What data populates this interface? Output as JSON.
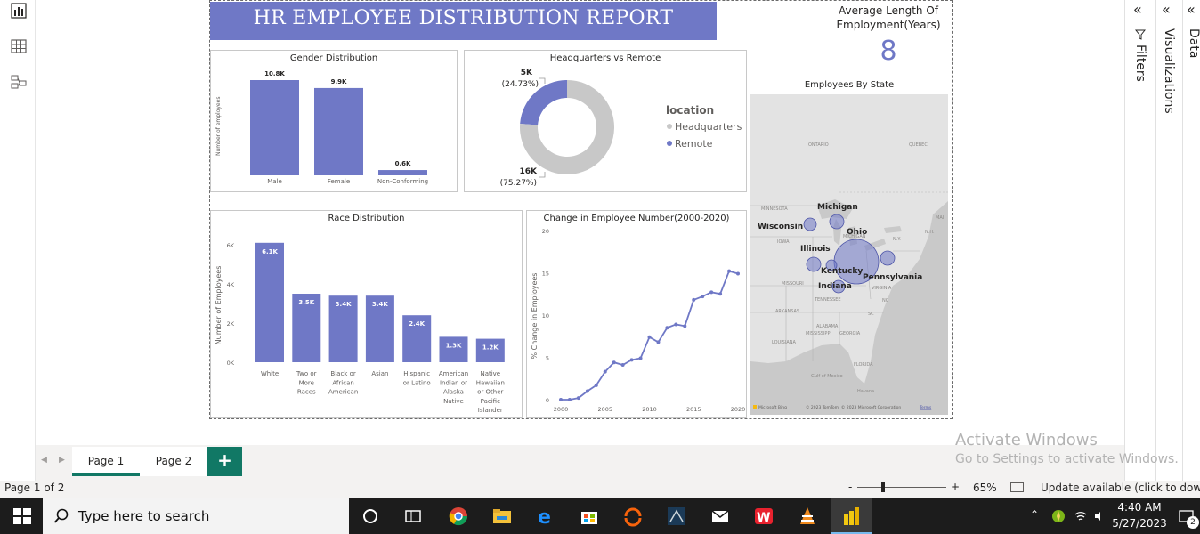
{
  "report": {
    "title": "HR EMPLOYEE DISTRIBUTION REPORT",
    "kpi_title": "Average Length Of Employment(Years)",
    "kpi_value": "8"
  },
  "gender": {
    "title": "Gender Distribution",
    "ylabel": "Number of employees",
    "categories": [
      "Male",
      "Female",
      "Non-Conforming"
    ],
    "labels": [
      "10.8K",
      "9.9K",
      "0.6K"
    ]
  },
  "location": {
    "title": "Headquarters vs Remote",
    "legend_title": "location",
    "legend": [
      "Headquarters",
      "Remote"
    ],
    "remote_value": "5K",
    "remote_pct": "(24.73%)",
    "hq_value": "16K",
    "hq_pct": "(75.27%)"
  },
  "race": {
    "title": "Race Distribution",
    "ylabel": "Number of Employees",
    "yticks": [
      "6K",
      "4K",
      "2K",
      "0K"
    ],
    "categories": [
      "White",
      "Two or More Races",
      "Black or African American",
      "Asian",
      "Hispanic or Latino",
      "American Indian or Alaska Native",
      "Native Hawaiian or Other Pacific Islander"
    ],
    "labels": [
      "6.1K",
      "3.5K",
      "3.4K",
      "3.4K",
      "2.4K",
      "1.3K",
      "1.2K"
    ]
  },
  "change": {
    "title": "Change in Employee Number(2000-2020)",
    "ylabel": "% Change in Employees",
    "yticks": [
      "20",
      "15",
      "10",
      "5",
      "0"
    ],
    "xticks": [
      "2000",
      "2005",
      "2010",
      "2015",
      "2020"
    ]
  },
  "map": {
    "title": "Employees By State",
    "states": [
      "Michigan",
      "Wisconsin",
      "Ohio",
      "Illinois",
      "Kentucky",
      "Pennsylvania",
      "Indiana"
    ],
    "region_labels": [
      "ONTARIO",
      "QUEBEC",
      "MINNESOTA",
      "IOWA",
      "MISSOURI",
      "ARKANSAS",
      "LOUISIANA",
      "MISSISSIPPI",
      "ALABAMA",
      "GEORGIA",
      "TENNESSEE",
      "VIRGINIA",
      "FLORIDA",
      "Gulf of Mexico",
      "Havana",
      "N.Y.",
      "N.H.",
      "MAI",
      "MICHIGAN",
      "NC",
      "SC"
    ],
    "copyright": "© 2023 TomTom, © 2023 Microsoft Corporation",
    "terms": "Terms",
    "brand": "Microsoft Bing"
  },
  "panes": {
    "filters": "Filters",
    "visualizations": "Visualizations",
    "data": "Data"
  },
  "tabs": [
    "Page 1",
    "Page 2"
  ],
  "add_tab": "+",
  "status": {
    "page": "Page 1 of 2",
    "zoom": "65%",
    "update": "Update available (click to downloa"
  },
  "watermark": {
    "line1": "Activate Windows",
    "line2": "Go to Settings to activate Windows."
  },
  "taskbar": {
    "search_placeholder": "Type here to search",
    "time": "4:40 AM",
    "date": "5/27/2023",
    "notif_count": "2"
  },
  "chart_data": [
    {
      "type": "bar",
      "title": "Gender Distribution",
      "ylabel": "Number of employees",
      "categories": [
        "Male",
        "Female",
        "Non-Conforming"
      ],
      "values": [
        10800,
        9900,
        600
      ]
    },
    {
      "type": "pie",
      "title": "Headquarters vs Remote",
      "categories": [
        "Headquarters",
        "Remote"
      ],
      "values": [
        16000,
        5000
      ],
      "percent": [
        75.27,
        24.73
      ],
      "colors": [
        "#c8c8c8",
        "#6f78c6"
      ],
      "legend": "right"
    },
    {
      "type": "bar",
      "title": "Race Distribution",
      "ylabel": "Number of Employees",
      "categories": [
        "White",
        "Two or More Races",
        "Black or African American",
        "Asian",
        "Hispanic or Latino",
        "American Indian or Alaska Native",
        "Native Hawaiian or Other Pacific Islander"
      ],
      "values": [
        6100,
        3500,
        3400,
        3400,
        2400,
        1300,
        1200
      ],
      "ylim": [
        0,
        6500
      ]
    },
    {
      "type": "line",
      "title": "Change in Employee Number(2000-2020)",
      "ylabel": "% Change in Employees",
      "x": [
        2000,
        2001,
        2002,
        2003,
        2004,
        2005,
        2006,
        2007,
        2008,
        2009,
        2010,
        2011,
        2012,
        2013,
        2014,
        2015,
        2016,
        2017,
        2018,
        2019,
        2020
      ],
      "values": [
        0,
        0,
        0.2,
        1,
        1.7,
        3.3,
        4.4,
        4.1,
        4.7,
        4.9,
        7.4,
        6.8,
        8.5,
        8.9,
        8.7,
        11.8,
        12.2,
        12.7,
        12.5,
        15.2,
        14.9
      ],
      "ylim": [
        0,
        20
      ],
      "xlim": [
        2000,
        2020
      ]
    }
  ]
}
